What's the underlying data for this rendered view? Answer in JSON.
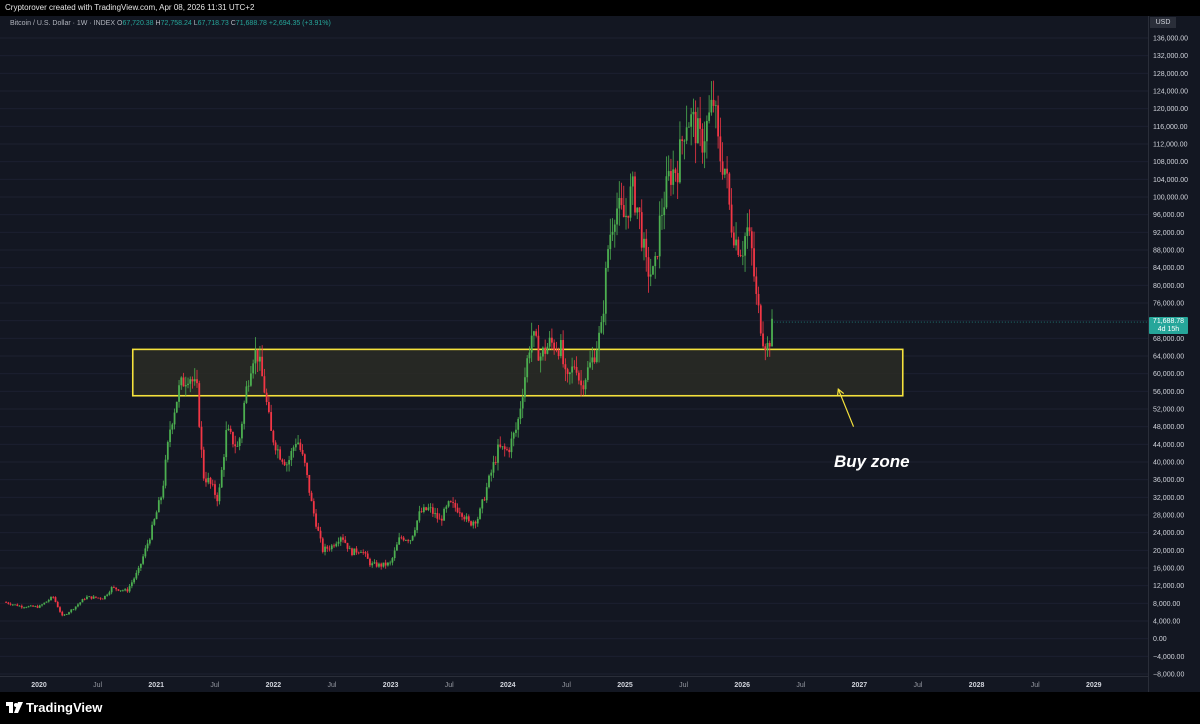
{
  "header": {
    "credit": "Cryptorover created with TradingView.com, Apr 08, 2026 11:31 UTC+2"
  },
  "legend": {
    "symbol": "Bitcoin / U.S. Dollar · 1W · INDEX",
    "o_label": "O",
    "o_value": "67,720.38",
    "h_label": "H",
    "h_value": "72,758.24",
    "l_label": "L",
    "l_value": "67,718.73",
    "c_label": "C",
    "c_value": "71,688.78",
    "change": "+2,694.35 (+3.91%)"
  },
  "price_axis": {
    "currency": "USD",
    "last_price": "71,688.78",
    "countdown": "4d 15h"
  },
  "annotation": {
    "text": "Buy zone"
  },
  "footer": {
    "brand": "TradingView"
  },
  "colors": {
    "background": "#131722",
    "up": "#26a69a",
    "up_candle": "#4caf50",
    "down_candle": "#f23645",
    "zone_border": "#f5e23c",
    "zone_fill": "#2a2b25"
  },
  "chart_data": {
    "type": "candlestick",
    "interval": "1W",
    "ylim": [
      -8000,
      136000
    ],
    "y_ticks": [
      "136,000.00",
      "132,000.00",
      "128,000.00",
      "124,000.00",
      "120,000.00",
      "116,000.00",
      "112,000.00",
      "108,000.00",
      "104,000.00",
      "100,000.00",
      "96,000.00",
      "92,000.00",
      "88,000.00",
      "84,000.00",
      "80,000.00",
      "76,000.00",
      "72,000.00",
      "68,000.00",
      "64,000.00",
      "60,000.00",
      "56,000.00",
      "52,000.00",
      "48,000.00",
      "44,000.00",
      "40,000.00",
      "36,000.00",
      "32,000.00",
      "28,000.00",
      "24,000.00",
      "20,000.00",
      "16,000.00",
      "12,000.00",
      "8,000.00",
      "4,000.00",
      "0.00",
      "−4,000.00",
      "−8,000.00"
    ],
    "x_ticks": [
      {
        "label": "2020",
        "t": 2020.0
      },
      {
        "label": "Jul",
        "t": 2020.5
      },
      {
        "label": "2021",
        "t": 2021.0
      },
      {
        "label": "Jul",
        "t": 2021.5
      },
      {
        "label": "2022",
        "t": 2022.0
      },
      {
        "label": "Jul",
        "t": 2022.5
      },
      {
        "label": "2023",
        "t": 2023.0
      },
      {
        "label": "Jul",
        "t": 2023.5
      },
      {
        "label": "2024",
        "t": 2024.0
      },
      {
        "label": "Jul",
        "t": 2024.5
      },
      {
        "label": "2025",
        "t": 2025.0
      },
      {
        "label": "Jul",
        "t": 2025.5
      },
      {
        "label": "2026",
        "t": 2026.0
      },
      {
        "label": "Jul",
        "t": 2026.5
      },
      {
        "label": "2027",
        "t": 2027.0
      },
      {
        "label": "Jul",
        "t": 2027.5
      },
      {
        "label": "2028",
        "t": 2028.0
      },
      {
        "label": "Jul",
        "t": 2028.5
      },
      {
        "label": "2029",
        "t": 2029.0
      }
    ],
    "close_path": [
      [
        2019.7,
        8300
      ],
      [
        2019.85,
        7300
      ],
      [
        2020.0,
        7200
      ],
      [
        2020.12,
        9500
      ],
      [
        2020.2,
        5000
      ],
      [
        2020.3,
        7000
      ],
      [
        2020.4,
        9400
      ],
      [
        2020.55,
        9200
      ],
      [
        2020.62,
        11500
      ],
      [
        2020.75,
        10800
      ],
      [
        2020.85,
        15500
      ],
      [
        2020.95,
        23500
      ],
      [
        2021.05,
        33000
      ],
      [
        2021.12,
        48000
      ],
      [
        2021.2,
        57000
      ],
      [
        2021.28,
        60000
      ],
      [
        2021.35,
        56000
      ],
      [
        2021.4,
        37000
      ],
      [
        2021.45,
        35500
      ],
      [
        2021.53,
        31500
      ],
      [
        2021.6,
        47000
      ],
      [
        2021.7,
        43000
      ],
      [
        2021.76,
        55000
      ],
      [
        2021.82,
        64000
      ],
      [
        2021.86,
        65000
      ],
      [
        2021.92,
        57000
      ],
      [
        2021.98,
        46500
      ],
      [
        2022.05,
        42000
      ],
      [
        2022.12,
        39500
      ],
      [
        2022.2,
        45500
      ],
      [
        2022.27,
        39000
      ],
      [
        2022.33,
        30000
      ],
      [
        2022.42,
        20000
      ],
      [
        2022.5,
        21000
      ],
      [
        2022.58,
        23500
      ],
      [
        2022.66,
        19500
      ],
      [
        2022.75,
        20200
      ],
      [
        2022.83,
        16800
      ],
      [
        2022.92,
        16600
      ],
      [
        2023.0,
        17000
      ],
      [
        2023.08,
        23000
      ],
      [
        2023.17,
        22500
      ],
      [
        2023.25,
        28500
      ],
      [
        2023.33,
        29500
      ],
      [
        2023.42,
        26700
      ],
      [
        2023.5,
        30500
      ],
      [
        2023.6,
        29000
      ],
      [
        2023.67,
        26000
      ],
      [
        2023.75,
        27500
      ],
      [
        2023.83,
        35000
      ],
      [
        2023.92,
        43000
      ],
      [
        2024.0,
        42500
      ],
      [
        2024.08,
        48000
      ],
      [
        2024.16,
        62000
      ],
      [
        2024.2,
        69000
      ],
      [
        2024.28,
        64000
      ],
      [
        2024.36,
        67000
      ],
      [
        2024.45,
        66000
      ],
      [
        2024.5,
        57500
      ],
      [
        2024.58,
        63000
      ],
      [
        2024.62,
        57000
      ],
      [
        2024.72,
        63000
      ],
      [
        2024.8,
        70000
      ],
      [
        2024.86,
        90000
      ],
      [
        2024.92,
        98000
      ],
      [
        2025.0,
        95000
      ],
      [
        2025.06,
        102000
      ],
      [
        2025.12,
        96000
      ],
      [
        2025.18,
        84000
      ],
      [
        2025.25,
        82000
      ],
      [
        2025.3,
        95000
      ],
      [
        2025.38,
        105000
      ],
      [
        2025.45,
        107000
      ],
      [
        2025.52,
        118000
      ],
      [
        2025.58,
        117000
      ],
      [
        2025.65,
        112000
      ],
      [
        2025.72,
        118000
      ],
      [
        2025.76,
        122000
      ],
      [
        2025.8,
        110000
      ],
      [
        2025.86,
        106000
      ],
      [
        2025.9,
        95000
      ],
      [
        2025.95,
        90000
      ],
      [
        2026.0,
        88000
      ],
      [
        2026.04,
        93000
      ],
      [
        2026.08,
        88000
      ],
      [
        2026.12,
        77000
      ],
      [
        2026.18,
        68000
      ],
      [
        2026.22,
        66000
      ],
      [
        2026.26,
        71000
      ],
      [
        2026.27,
        71688
      ]
    ],
    "zones": [
      {
        "label": "Buy zone",
        "t0": 2020.8,
        "t1": 2027.37,
        "y_low": 55000,
        "y_high": 65500
      }
    ],
    "annotations": [
      {
        "text": "Buy zone",
        "arrow_from": [
          2026.95,
          48000
        ],
        "arrow_to": [
          2026.82,
          56500
        ]
      }
    ],
    "legend_position": "top-left"
  }
}
